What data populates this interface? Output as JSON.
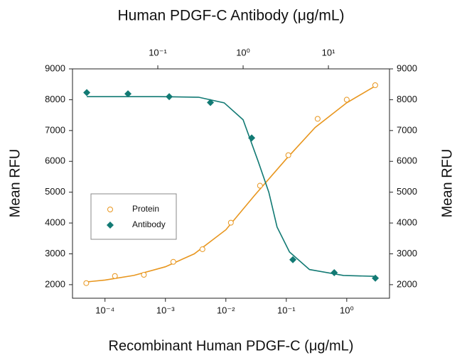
{
  "chart_data": {
    "type": "scatter",
    "title": "Human PDGF-C  Antibody (μg/mL)",
    "xlabel": "Recombinant Human PDGF-C (μg/mL)",
    "ylabel": "Mean RFU",
    "y2label": "Mean RFU",
    "xscale": "log",
    "x2scale": "log",
    "xlim": [
      2.9e-05,
      5.1
    ],
    "xticks": [
      {
        "value": 0.0001,
        "label": "10⁻⁴"
      },
      {
        "value": 0.001,
        "label": "10⁻³"
      },
      {
        "value": 0.01,
        "label": "10⁻²"
      },
      {
        "value": 0.1,
        "label": "10⁻¹"
      },
      {
        "value": 1,
        "label": "10⁰"
      }
    ],
    "x2lim": [
      0.01,
      52
    ],
    "x2ticks": [
      {
        "value": 0.1,
        "label": "10⁻¹"
      },
      {
        "value": 1,
        "label": "10⁰"
      },
      {
        "value": 10,
        "label": "10¹"
      }
    ],
    "ylim": [
      1560,
      9000
    ],
    "yticks": [
      2000,
      3000,
      4000,
      5000,
      6000,
      7000,
      8000,
      9000
    ],
    "y2lim": [
      1560,
      9000
    ],
    "y2ticks": [
      2000,
      3000,
      4000,
      5000,
      6000,
      7000,
      8000,
      9000
    ],
    "legend": "left",
    "series": [
      {
        "name": "Protein",
        "color": "#e8961e",
        "marker": "circle",
        "axis": "x",
        "x": [
          4.9e-05,
          0.000146,
          0.00044,
          0.00135,
          0.0041,
          0.0121,
          0.0367,
          0.108,
          0.33,
          1.0,
          2.96
        ],
        "values": [
          2050,
          2280,
          2320,
          2740,
          3150,
          4010,
          5210,
          6200,
          7380,
          8000,
          8470
        ],
        "fit": {
          "x": [
            5e-05,
            0.0001,
            0.0003,
            0.001,
            0.003,
            0.01,
            0.03,
            0.1,
            0.3,
            1,
            3
          ],
          "values": [
            2090,
            2150,
            2300,
            2580,
            3000,
            3780,
            4900,
            6080,
            7100,
            7900,
            8450
          ]
        }
      },
      {
        "name": "Antibody",
        "color": "#127a74",
        "marker": "diamond",
        "axis": "x2",
        "x": [
          0.0147,
          0.0447,
          0.136,
          0.414,
          1.26,
          3.83,
          11.7,
          35.5
        ],
        "values": [
          8230,
          8190,
          8100,
          7910,
          6760,
          2810,
          2390,
          2210
        ],
        "fit": {
          "x": [
            0.0147,
            0.1,
            0.3,
            0.6,
            1.0,
            1.5,
            2.0,
            2.5,
            3.5,
            6,
            15,
            35
          ],
          "values": [
            8100,
            8100,
            8080,
            7900,
            7350,
            6000,
            5000,
            3870,
            3060,
            2490,
            2300,
            2270
          ]
        }
      }
    ]
  }
}
